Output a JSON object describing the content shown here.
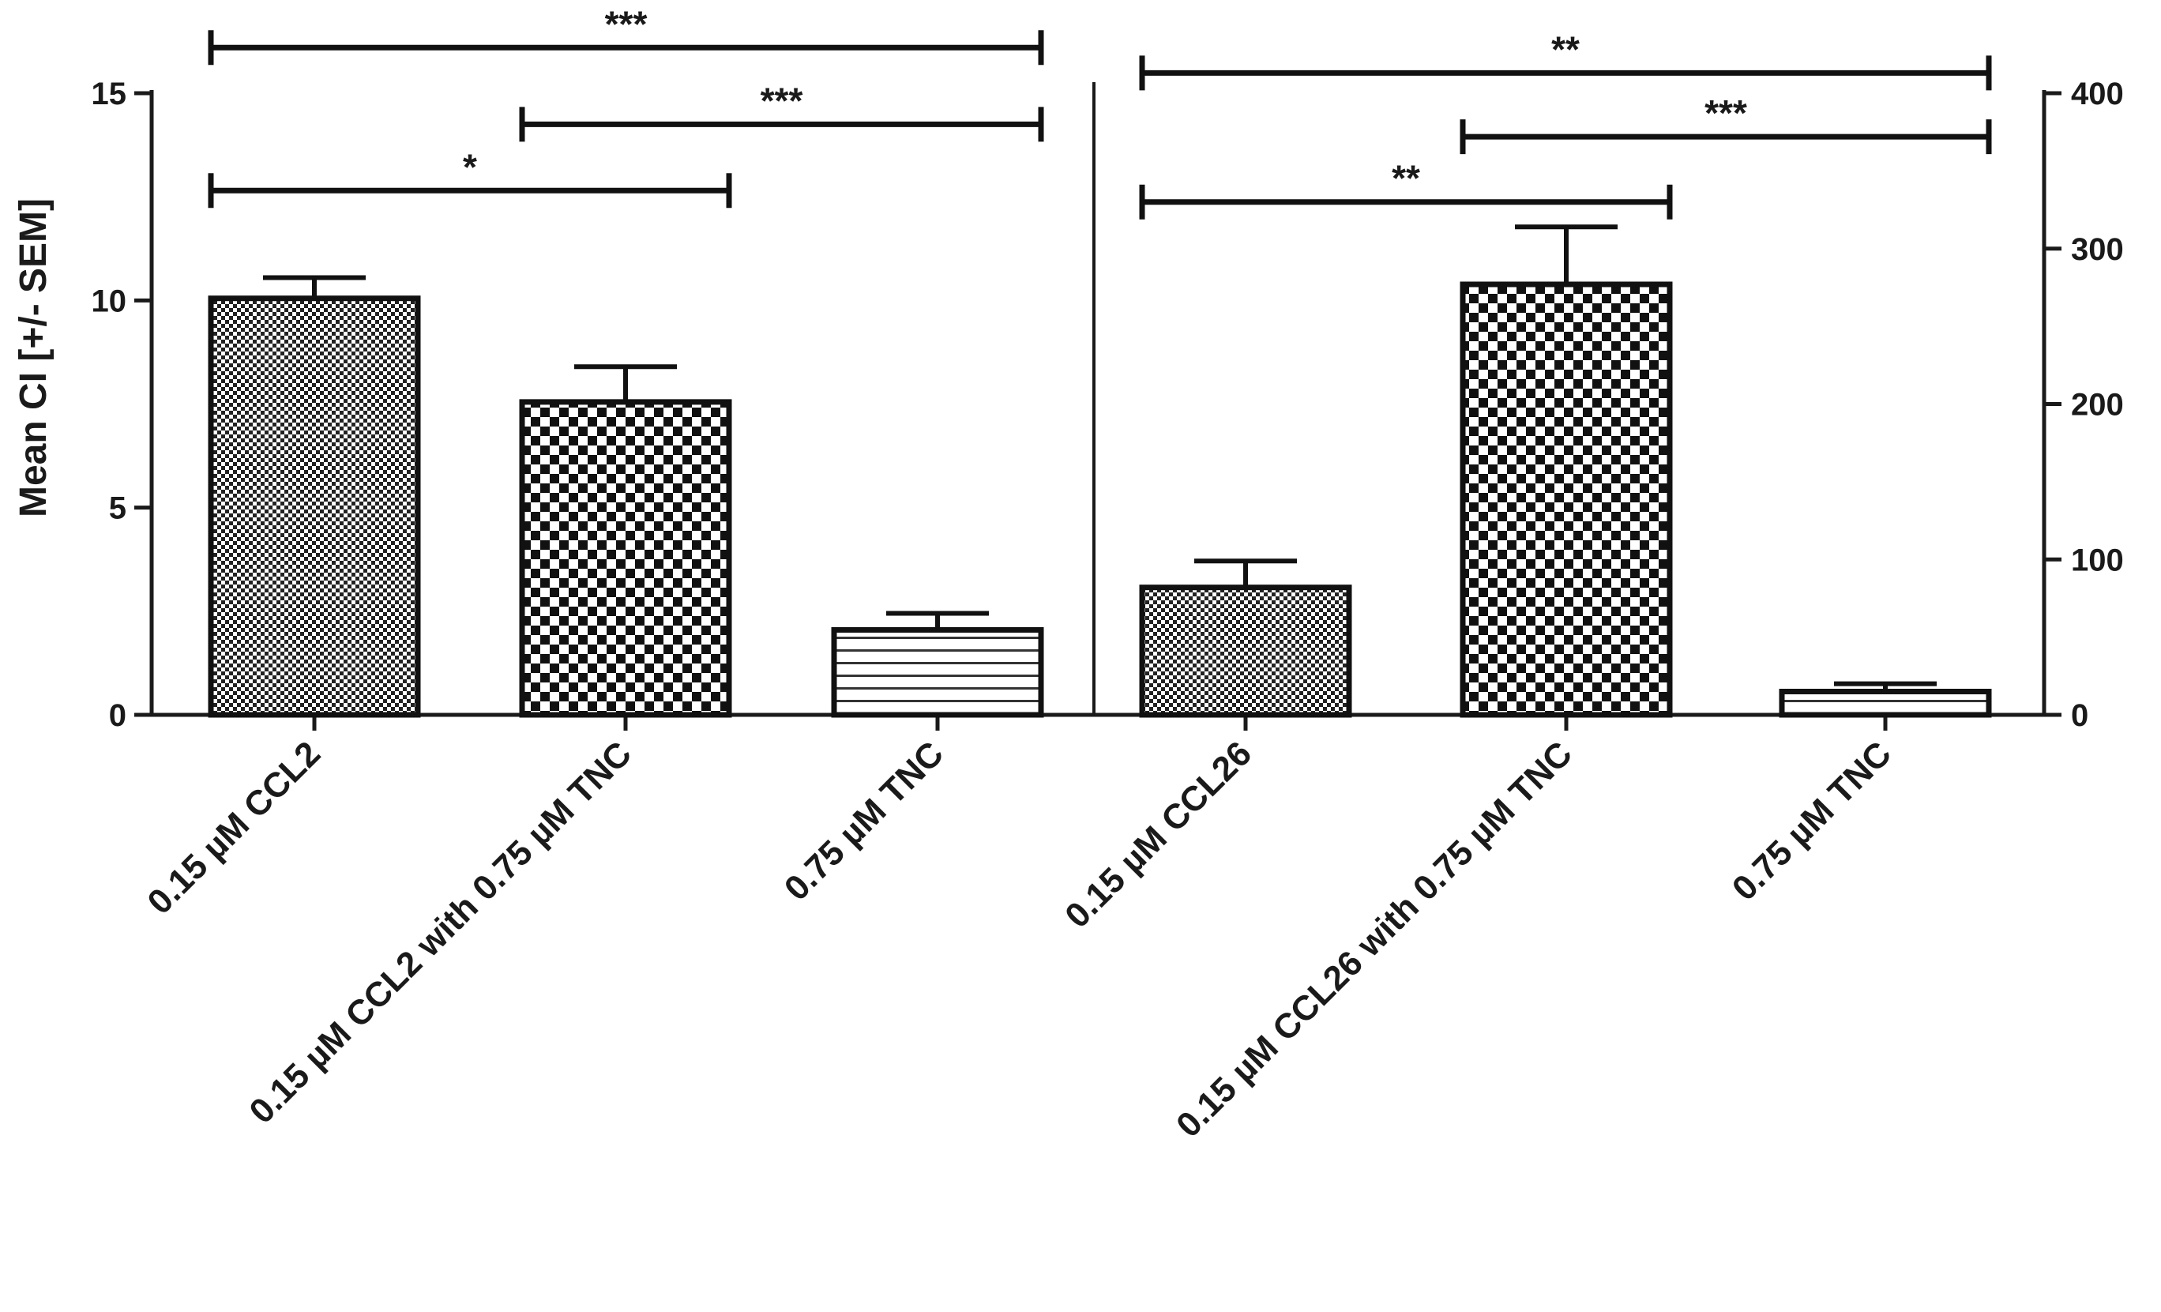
{
  "chart_data": [
    {
      "type": "bar",
      "ylabel": "Mean CI  [+/- SEM]",
      "ylim": [
        0,
        15
      ],
      "yticks": [
        0,
        5,
        10,
        15
      ],
      "axis_side": "left",
      "categories": [
        "0.15 µM CCL2",
        "0.15 µM CCL2 with 0.75 µM TNC",
        "0.75 µM TNC"
      ],
      "values": [
        10.05,
        7.55,
        2.05
      ],
      "errors": [
        0.5,
        0.85,
        0.4
      ],
      "patterns": [
        "fine-check",
        "coarse-check",
        "horizontal-lines"
      ],
      "significance": [
        {
          "from": 0,
          "to": 2,
          "label": "***",
          "y": 16.1
        },
        {
          "from": 1,
          "to": 2,
          "label": "***",
          "y": 14.25
        },
        {
          "from": 0,
          "to": 1,
          "label": "*",
          "y": 12.65
        }
      ]
    },
    {
      "type": "bar",
      "ylim": [
        0,
        400
      ],
      "yticks": [
        0,
        100,
        200,
        300,
        400
      ],
      "axis_side": "right",
      "categories": [
        "0.15 µM CCL26",
        "0.15 µM CCL26 with 0.75 µM TNC",
        "0.75 µM TNC"
      ],
      "values": [
        82,
        277,
        15
      ],
      "errors": [
        17,
        37,
        5
      ],
      "patterns": [
        "fine-check",
        "coarse-check",
        "horizontal-lines"
      ],
      "significance": [
        {
          "from": 0,
          "to": 2,
          "label": "**",
          "y": 413
        },
        {
          "from": 1,
          "to": 2,
          "label": "***",
          "y": 372
        },
        {
          "from": 0,
          "to": 1,
          "label": "**",
          "y": 330
        }
      ]
    }
  ]
}
